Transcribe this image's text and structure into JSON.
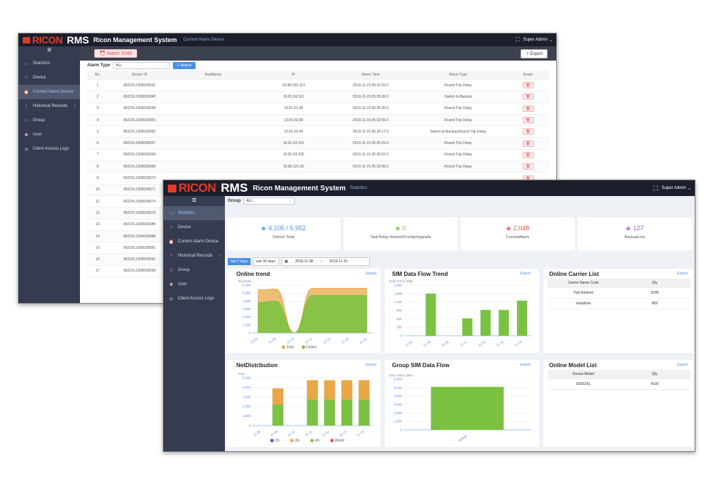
{
  "app": {
    "logo_ricon": "RICON",
    "logo_rms": "RMS",
    "title": "Ricon Management System",
    "user": "Super Admin",
    "fullscreen_icon": "fullscreen-icon",
    "menu_icon": "hamburger-icon"
  },
  "back_window": {
    "breadcrumb": "Current Alarm Device",
    "alarm_badge": "Alarm 2049",
    "export_label": "Export",
    "filter_label": "Alarm Type",
    "filter_value": "ALL",
    "search_label": "Search",
    "sidebar": [
      {
        "label": "Statistics",
        "icon": "monitor-icon",
        "active": false
      },
      {
        "label": "Device",
        "icon": "user-icon",
        "active": false
      },
      {
        "label": "Current Alarm Device",
        "icon": "alarm-icon",
        "active": true
      },
      {
        "label": "Historical Records",
        "icon": "chart-icon",
        "active": false,
        "caret": "v"
      },
      {
        "label": "Group",
        "icon": "group-icon",
        "active": false
      },
      {
        "label": "User",
        "icon": "users-icon",
        "active": false
      },
      {
        "label": "Client Access Logs",
        "icon": "globe-icon",
        "active": false
      }
    ],
    "columns": [
      "No.",
      "Device ID",
      "HostName",
      "IP",
      "Alarm Time",
      "Alarm Type",
      "Erase"
    ],
    "rows": [
      {
        "no": "1",
        "id": "8022XL1908158041",
        "host": "",
        "ip": "10.88.183.113",
        "time": "2019-11-15 05:31:02.0",
        "type": "Round Trip Delay"
      },
      {
        "no": "2",
        "id": "8022XL1908158045",
        "host": "",
        "ip": "10.81.54.161",
        "time": "2019-11-15 05:35:09.0",
        "type": "Switch to Backup"
      },
      {
        "no": "3",
        "id": "8022XL1908158049",
        "host": "",
        "ip": "10.81.51.49",
        "time": "2019-11-15 05:35:20.0",
        "type": "Round Trip Delay"
      },
      {
        "no": "4",
        "id": "8022XL1908158053",
        "host": "",
        "ip": "10.81.53.89",
        "time": "2019-11-15 05:33:59.0",
        "type": "Round Trip Delay"
      },
      {
        "no": "5",
        "id": "8022XL1908158055",
        "host": "",
        "ip": "10.81.53.49",
        "time": "2019-11-15 05:30:17.0",
        "type": "Switch to Backup,Round Trip Delay"
      },
      {
        "no": "6",
        "id": "8022XL1908158057",
        "host": "",
        "ip": "10.81.53.241",
        "time": "2019-11-15 05:35:29.0",
        "type": "Round Trip Delay"
      },
      {
        "no": "7",
        "id": "8022XL1908158059",
        "host": "",
        "ip": "10.81.53.209",
        "time": "2019-11-15 05:35:02.0",
        "type": "Round Trip Delay"
      },
      {
        "no": "8",
        "id": "8022XL1908158069",
        "host": "",
        "ip": "10.80.121.65",
        "time": "2019-11-15 05:33:05.0",
        "type": "Round Trip Delay"
      },
      {
        "no": "9",
        "id": "8022XL1908158070",
        "host": "",
        "ip": "",
        "time": "",
        "type": ""
      },
      {
        "no": "10",
        "id": "8022XL1908158071",
        "host": "",
        "ip": "",
        "time": "",
        "type": ""
      },
      {
        "no": "11",
        "id": "8022XL1908158074",
        "host": "",
        "ip": "",
        "time": "",
        "type": ""
      },
      {
        "no": "12",
        "id": "8022XL1908158075",
        "host": "",
        "ip": "",
        "time": "",
        "type": ""
      },
      {
        "no": "13",
        "id": "8022XL1908158085",
        "host": "",
        "ip": "",
        "time": "",
        "type": ""
      },
      {
        "no": "14",
        "id": "8022XL1908158088",
        "host": "",
        "ip": "",
        "time": "",
        "type": ""
      },
      {
        "no": "15",
        "id": "8022XL1908158091",
        "host": "",
        "ip": "",
        "time": "",
        "type": ""
      },
      {
        "no": "16",
        "id": "8022XL1908158092",
        "host": "",
        "ip": "",
        "time": "",
        "type": ""
      },
      {
        "no": "17",
        "id": "8022XL1908158093",
        "host": "",
        "ip": "",
        "time": "",
        "type": ""
      }
    ]
  },
  "front_window": {
    "breadcrumb": "Statistics",
    "group_label": "Group",
    "group_value": "ALL",
    "sidebar": [
      {
        "label": "Statistics",
        "icon": "monitor-icon",
        "active": true
      },
      {
        "label": "Device",
        "icon": "user-icon",
        "active": false
      },
      {
        "label": "Current Alarm Device",
        "icon": "alarm-icon",
        "active": false
      },
      {
        "label": "Historical Records",
        "icon": "chart-icon",
        "active": false,
        "caret": "v"
      },
      {
        "label": "Group",
        "icon": "group-icon",
        "active": false
      },
      {
        "label": "User",
        "icon": "users-icon",
        "active": false
      },
      {
        "label": "Client Access Logs",
        "icon": "globe-icon",
        "active": false
      }
    ],
    "stats": [
      {
        "value": "4,105 / 5,952",
        "label": "Online/ Total",
        "color": "#4a90e2",
        "icon": "signal-icon"
      },
      {
        "value": "0",
        "label": "TaskToday Reboot/Config/Upgrade",
        "color": "#7cc242",
        "icon": "calendar-icon"
      },
      {
        "value": "2,048",
        "label": "CurrentAlarm",
        "color": "#e05050",
        "icon": "alarm-clock-icon"
      },
      {
        "value": "127",
        "label": "BackupLink",
        "color": "#a05cd6",
        "icon": "link-icon"
      }
    ],
    "date_tabs": [
      "last 7 days",
      "last 30 days"
    ],
    "date_from": "2019-11-08",
    "date_sep": "~",
    "date_to": "2019-11-15",
    "export_label": "Export",
    "cards": {
      "online_trend": "Online trend",
      "sim_trend": "SIM Data Flow Trend",
      "carrier_list": "Online Carrier List",
      "net_dist": "NetDistribution",
      "group_sim": "Group SIM Data Flow",
      "model_list": "Online Model List"
    },
    "carrier_table": {
      "headers": [
        "Carrier Name Code",
        "Qty"
      ],
      "rows": [
        [
          "TurkTelekom",
          "3296"
        ],
        [
          "Vodafone",
          "809"
        ]
      ]
    },
    "model_table": {
      "headers": [
        "Device Model",
        "Qty"
      ],
      "rows": [
        [
          "S9922XL",
          "4105"
        ]
      ]
    }
  },
  "colors": {
    "topbar": "#1b1f2b",
    "sidebar": "#353c50",
    "accent_blue": "#4a90e2",
    "total_orange": "#e8a848",
    "online_green": "#7cc242",
    "g2_purple": "#6b4fbb",
    "wired_red": "#e05050"
  },
  "chart_data": [
    {
      "type": "area",
      "title": "Online trend",
      "ylabel": "Terminals",
      "categories": [
        "11-08",
        "11-09",
        "11-10",
        "11-11",
        "11-12",
        "11-13",
        "11-14"
      ],
      "yticks": [
        "0",
        "1,000",
        "2,000",
        "3,000",
        "4,000",
        "5,000",
        "6,000"
      ],
      "ylim": [
        0,
        6000
      ],
      "series": [
        {
          "name": "Total",
          "values": [
            5400,
            5500,
            0,
            5600,
            5600,
            5600,
            5600
          ]
        },
        {
          "name": "Online",
          "values": [
            3800,
            4000,
            0,
            4700,
            4700,
            4700,
            4700
          ]
        }
      ],
      "legend": "bottom"
    },
    {
      "type": "bar",
      "title": "SIM Data Flow Trend",
      "ylabel": "Data Trend (MB)",
      "categories": [
        "11-08",
        "11-09",
        "11-10",
        "11-11",
        "11-12",
        "11-13",
        "11-14"
      ],
      "yticks": [
        "0",
        "300",
        "600",
        "900",
        "1,200",
        "1,500",
        "1,800"
      ],
      "ylim": [
        0,
        1800
      ],
      "values": [
        0,
        1500,
        0,
        620,
        920,
        920,
        1250
      ]
    },
    {
      "type": "bar",
      "title": "NetDistribution",
      "ylabel": "Total",
      "categories": [
        "11-08",
        "11-09",
        "11-10",
        "11-11",
        "11-12",
        "11-13",
        "11-14"
      ],
      "yticks": [
        "0",
        "1,000",
        "2,000",
        "3,000",
        "4,000",
        "5,000"
      ],
      "ylim": [
        0,
        5000
      ],
      "series": [
        {
          "name": "2G",
          "values": [
            0,
            0,
            0,
            0,
            0,
            0,
            0
          ]
        },
        {
          "name": "3G",
          "values": [
            0,
            1700,
            0,
            2000,
            2000,
            2000,
            2000
          ]
        },
        {
          "name": "4G",
          "values": [
            0,
            2200,
            0,
            2750,
            2750,
            2750,
            2750
          ]
        },
        {
          "name": "Wired",
          "values": [
            0,
            0,
            0,
            0,
            0,
            0,
            0
          ]
        }
      ],
      "legend": "bottom"
    },
    {
      "type": "bar",
      "title": "Group SIM Data Flow",
      "ylabel": "Data Value (MB)",
      "categories": [
        "default"
      ],
      "yticks": [
        "0",
        "1,000",
        "2,000",
        "3,000",
        "4,000",
        "5,000",
        "6,000"
      ],
      "ylim": [
        0,
        6000
      ],
      "values": [
        5100
      ]
    }
  ]
}
